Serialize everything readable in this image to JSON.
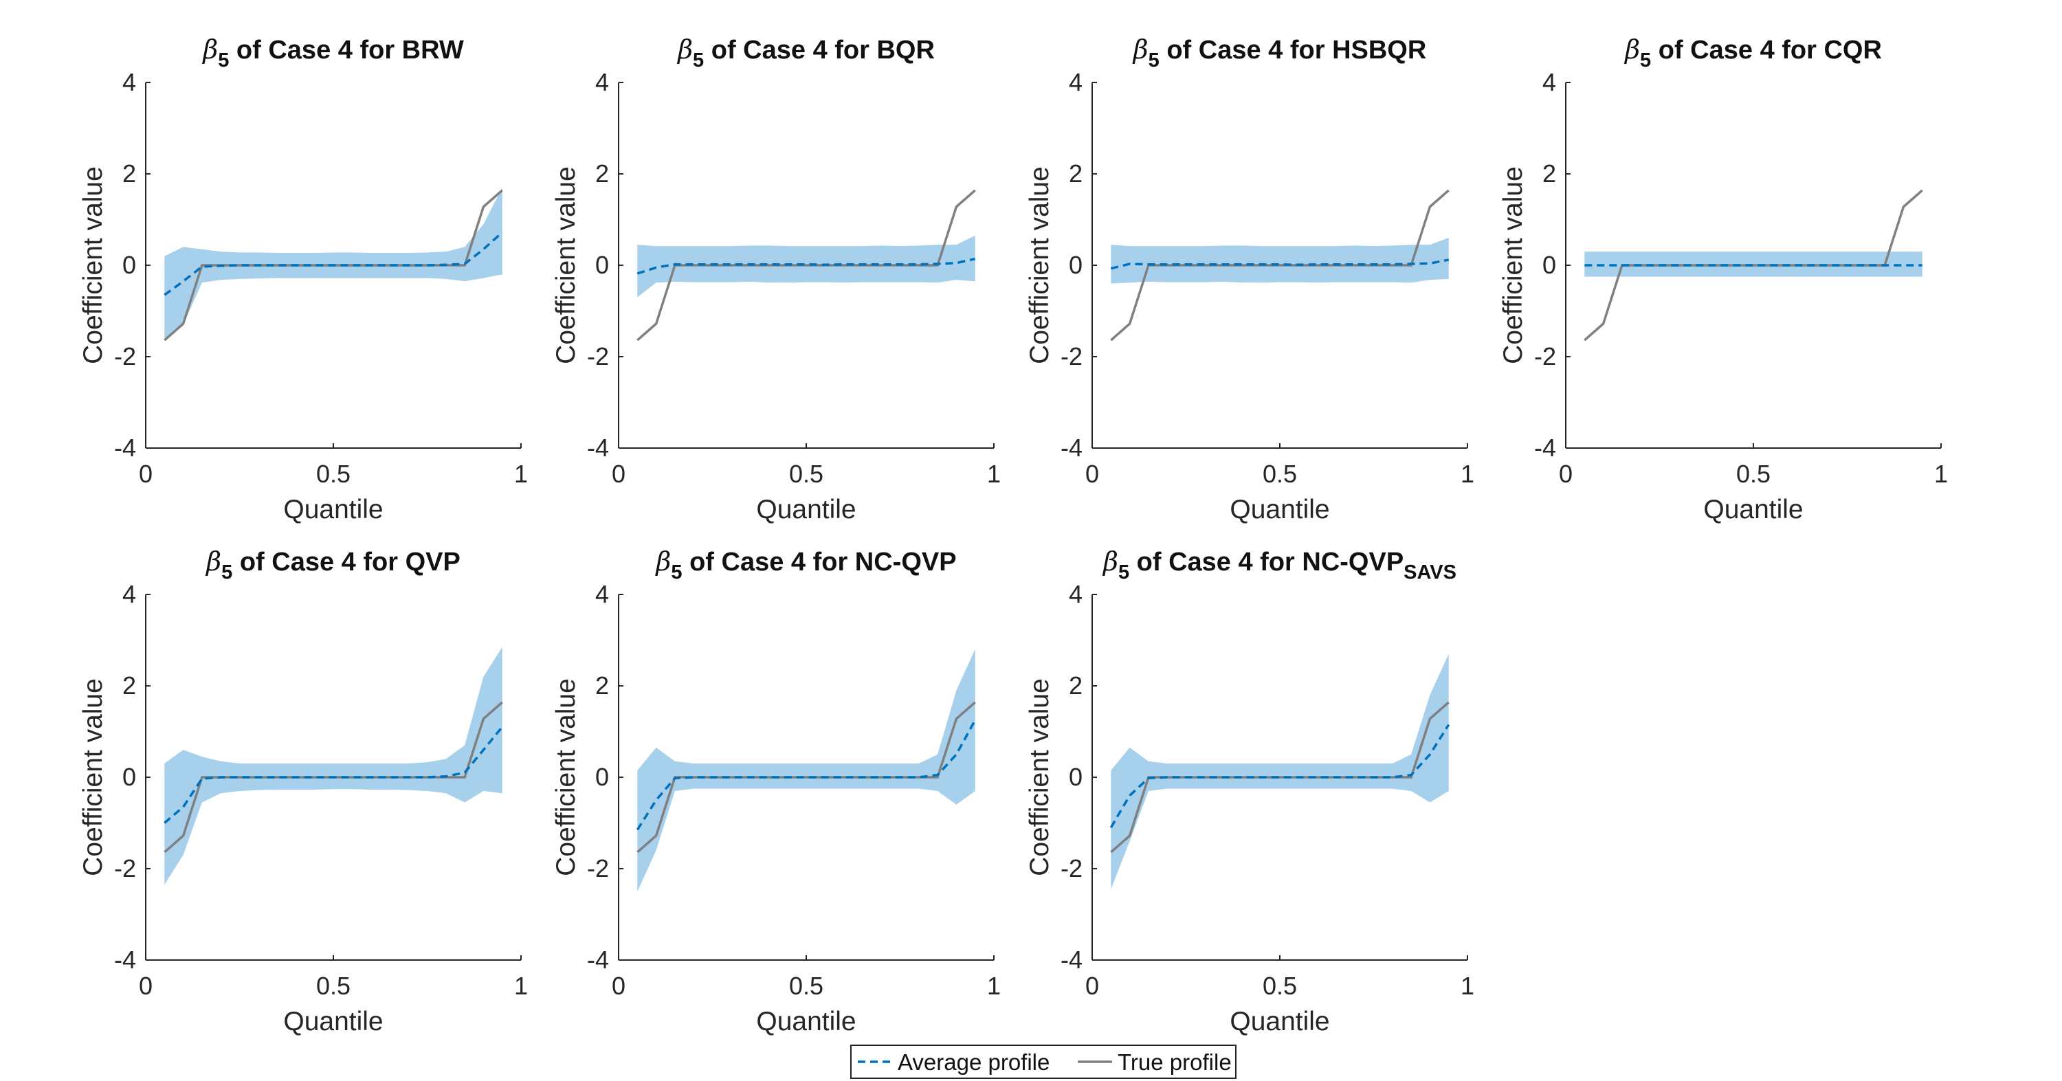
{
  "chart_data": {
    "type": "line",
    "layout": "2x4 grid of panels",
    "legend": {
      "placement": "bottom-center",
      "entries": [
        {
          "label": "Average profile",
          "style": "dashed",
          "color": "#0072BD"
        },
        {
          "label": "True profile",
          "style": "solid",
          "color": "#808080"
        }
      ]
    },
    "band_color": "#A6D0EC",
    "x_ticks": [
      0,
      0.5,
      1
    ],
    "x_tick_labels": [
      "0",
      "0.5",
      "1"
    ],
    "y_ticks": [
      -4,
      -2,
      0,
      2,
      4
    ],
    "y_tick_labels": [
      "-4",
      "-2",
      "0",
      "2",
      "4"
    ],
    "true_profile": {
      "x": [
        0.05,
        0.1,
        0.15,
        0.2,
        0.25,
        0.3,
        0.35,
        0.4,
        0.45,
        0.5,
        0.55,
        0.6,
        0.65,
        0.7,
        0.75,
        0.8,
        0.85,
        0.9,
        0.95
      ],
      "y": [
        -1.64,
        -1.28,
        0,
        0,
        0,
        0,
        0,
        0,
        0,
        0,
        0,
        0,
        0,
        0,
        0,
        0,
        0,
        1.28,
        1.64
      ]
    },
    "panels": [
      {
        "title_symbol": "β",
        "title_sub": "5",
        "title_main": " of Case 4 for BRW",
        "title_suffix_sub": "",
        "xlabel": "Quantile",
        "ylabel": "Coefficient value",
        "xlim": [
          0,
          1
        ],
        "ylim": [
          -4,
          4
        ],
        "avg": [
          -0.65,
          -0.35,
          -0.03,
          -0.01,
          0,
          0,
          0,
          0,
          0,
          0,
          0,
          0,
          0,
          0,
          0,
          0.01,
          0.03,
          0.35,
          0.72
        ],
        "upper": [
          0.2,
          0.4,
          0.35,
          0.3,
          0.28,
          0.28,
          0.27,
          0.27,
          0.27,
          0.28,
          0.28,
          0.27,
          0.27,
          0.27,
          0.28,
          0.3,
          0.4,
          0.9,
          1.7
        ],
        "lower": [
          -1.6,
          -1.3,
          -0.38,
          -0.32,
          -0.3,
          -0.29,
          -0.28,
          -0.28,
          -0.28,
          -0.28,
          -0.28,
          -0.28,
          -0.28,
          -0.28,
          -0.28,
          -0.3,
          -0.35,
          -0.28,
          -0.2
        ]
      },
      {
        "title_symbol": "β",
        "title_sub": "5",
        "title_main": " of Case 4 for BQR",
        "title_suffix_sub": "",
        "xlabel": "Quantile",
        "ylabel": "Coefficient value",
        "xlim": [
          0,
          1
        ],
        "ylim": [
          -4,
          4
        ],
        "avg": [
          -0.18,
          -0.05,
          0.02,
          0.02,
          0.02,
          0.02,
          0.02,
          0.02,
          0.02,
          0.02,
          0.01,
          0.02,
          0.02,
          0.02,
          0.02,
          0.02,
          0.03,
          0.05,
          0.14
        ],
        "upper": [
          0.45,
          0.42,
          0.42,
          0.42,
          0.42,
          0.42,
          0.43,
          0.43,
          0.42,
          0.42,
          0.42,
          0.42,
          0.42,
          0.43,
          0.42,
          0.43,
          0.45,
          0.45,
          0.65
        ],
        "lower": [
          -0.7,
          -0.38,
          -0.36,
          -0.37,
          -0.37,
          -0.37,
          -0.36,
          -0.38,
          -0.38,
          -0.37,
          -0.37,
          -0.38,
          -0.37,
          -0.37,
          -0.37,
          -0.37,
          -0.38,
          -0.32,
          -0.35
        ]
      },
      {
        "title_symbol": "β",
        "title_sub": "5",
        "title_main": " of Case 4 for HSBQR",
        "title_suffix_sub": "",
        "xlabel": "Quantile",
        "ylabel": "Coefficient value",
        "xlim": [
          0,
          1
        ],
        "ylim": [
          -4,
          4
        ],
        "avg": [
          -0.07,
          0.03,
          0.02,
          0.02,
          0.02,
          0.02,
          0.02,
          0.02,
          0.02,
          0.02,
          0.01,
          0.02,
          0.02,
          0.02,
          0.02,
          0.02,
          0.03,
          0.04,
          0.12
        ],
        "upper": [
          0.45,
          0.42,
          0.42,
          0.42,
          0.42,
          0.42,
          0.43,
          0.43,
          0.42,
          0.42,
          0.42,
          0.42,
          0.42,
          0.43,
          0.42,
          0.43,
          0.45,
          0.45,
          0.6
        ],
        "lower": [
          -0.4,
          -0.38,
          -0.36,
          -0.37,
          -0.37,
          -0.37,
          -0.36,
          -0.38,
          -0.38,
          -0.37,
          -0.37,
          -0.38,
          -0.37,
          -0.37,
          -0.37,
          -0.37,
          -0.38,
          -0.32,
          -0.3
        ]
      },
      {
        "title_symbol": "β",
        "title_sub": "5",
        "title_main": " of Case 4 for CQR",
        "title_suffix_sub": "",
        "xlabel": "Quantile",
        "ylabel": "Coefficient value",
        "xlim": [
          0,
          1
        ],
        "ylim": [
          -4,
          4
        ],
        "avg": [
          0,
          0,
          0,
          0,
          0,
          0,
          0,
          0,
          0,
          0,
          0,
          0,
          0,
          0,
          0,
          0,
          0,
          0,
          0
        ],
        "upper": [
          0.3,
          0.3,
          0.3,
          0.3,
          0.3,
          0.3,
          0.3,
          0.3,
          0.3,
          0.3,
          0.3,
          0.3,
          0.3,
          0.3,
          0.3,
          0.3,
          0.3,
          0.3,
          0.3
        ],
        "lower": [
          -0.25,
          -0.25,
          -0.25,
          -0.25,
          -0.25,
          -0.25,
          -0.25,
          -0.25,
          -0.25,
          -0.25,
          -0.25,
          -0.25,
          -0.25,
          -0.25,
          -0.25,
          -0.25,
          -0.25,
          -0.25,
          -0.25
        ]
      },
      {
        "title_symbol": "β",
        "title_sub": "5",
        "title_main": " of Case 4 for QVP",
        "title_suffix_sub": "",
        "xlabel": "Quantile",
        "ylabel": "Coefficient value",
        "xlim": [
          0,
          1
        ],
        "ylim": [
          -4,
          4
        ],
        "avg": [
          -1.0,
          -0.65,
          -0.03,
          0,
          0,
          0,
          0,
          0,
          0,
          0,
          0,
          0,
          0,
          0,
          0,
          0.02,
          0.1,
          0.6,
          1.1
        ],
        "upper": [
          0.3,
          0.6,
          0.45,
          0.35,
          0.3,
          0.3,
          0.3,
          0.3,
          0.3,
          0.3,
          0.3,
          0.3,
          0.3,
          0.3,
          0.33,
          0.4,
          0.7,
          2.2,
          2.85
        ],
        "lower": [
          -2.35,
          -1.7,
          -0.55,
          -0.35,
          -0.3,
          -0.28,
          -0.27,
          -0.27,
          -0.27,
          -0.26,
          -0.26,
          -0.27,
          -0.27,
          -0.28,
          -0.3,
          -0.35,
          -0.55,
          -0.3,
          -0.35
        ]
      },
      {
        "title_symbol": "β",
        "title_sub": "5",
        "title_main": " of Case 4 for NC-QVP",
        "title_suffix_sub": "",
        "xlabel": "Quantile",
        "ylabel": "Coefficient value",
        "xlim": [
          0,
          1
        ],
        "ylim": [
          -4,
          4
        ],
        "avg": [
          -1.15,
          -0.5,
          -0.02,
          0,
          0,
          0,
          0,
          0,
          0,
          0,
          0,
          0,
          0,
          0,
          0,
          0,
          0.05,
          0.5,
          1.25
        ],
        "upper": [
          0.15,
          0.65,
          0.35,
          0.3,
          0.3,
          0.3,
          0.3,
          0.3,
          0.3,
          0.3,
          0.3,
          0.3,
          0.3,
          0.3,
          0.3,
          0.3,
          0.5,
          1.9,
          2.8
        ],
        "lower": [
          -2.5,
          -1.6,
          -0.3,
          -0.25,
          -0.25,
          -0.25,
          -0.25,
          -0.25,
          -0.25,
          -0.25,
          -0.25,
          -0.25,
          -0.25,
          -0.25,
          -0.25,
          -0.25,
          -0.3,
          -0.6,
          -0.3
        ]
      },
      {
        "title_symbol": "β",
        "title_sub": "5",
        "title_main": " of Case 4 for NC-QVP",
        "title_suffix_sub": "SAVS",
        "xlabel": "Quantile",
        "ylabel": "Coefficient value",
        "xlim": [
          0,
          1
        ],
        "ylim": [
          -4,
          4
        ],
        "avg": [
          -1.1,
          -0.4,
          -0.02,
          0,
          0,
          0,
          0,
          0,
          0,
          0,
          0,
          0,
          0,
          0,
          0,
          0,
          0.05,
          0.5,
          1.15
        ],
        "upper": [
          0.15,
          0.65,
          0.35,
          0.3,
          0.3,
          0.3,
          0.3,
          0.3,
          0.3,
          0.3,
          0.3,
          0.3,
          0.3,
          0.3,
          0.3,
          0.3,
          0.5,
          1.8,
          2.7
        ],
        "lower": [
          -2.45,
          -1.4,
          -0.3,
          -0.25,
          -0.25,
          -0.25,
          -0.25,
          -0.25,
          -0.25,
          -0.25,
          -0.25,
          -0.25,
          -0.25,
          -0.25,
          -0.25,
          -0.25,
          -0.3,
          -0.55,
          -0.3
        ]
      }
    ]
  }
}
